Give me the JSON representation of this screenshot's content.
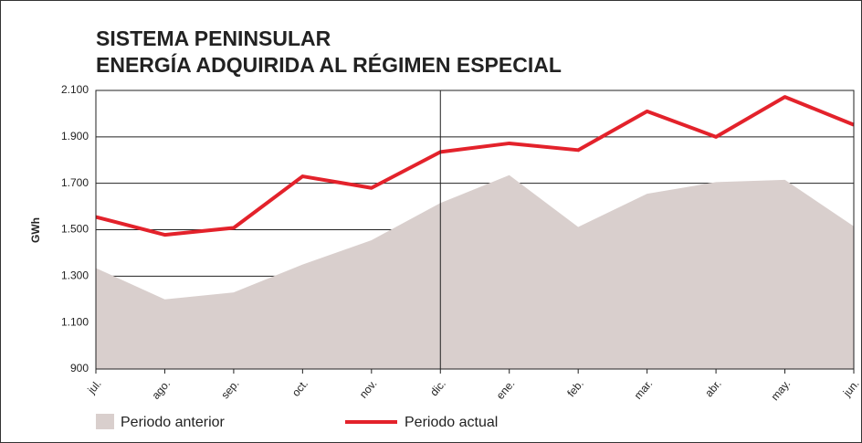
{
  "chart_data": {
    "type": "line",
    "title": [
      "SISTEMA PENINSULAR",
      "ENERGÍA ADQUIRIDA AL RÉGIMEN ESPECIAL"
    ],
    "y_label": "GWh",
    "categories": [
      "jul.",
      "ago.",
      "sep.",
      "oct.",
      "nov.",
      "dic.",
      "ene.",
      "feb.",
      "mar.",
      "abr.",
      "may.",
      "jun."
    ],
    "series": [
      {
        "name": "Periodo anterior",
        "color": "#d9cfcd",
        "style": "area",
        "values": [
          1335,
          1200,
          1230,
          1350,
          1455,
          1615,
          1735,
          1512,
          1655,
          1705,
          1715,
          1515
        ]
      },
      {
        "name": "Periodo actual",
        "color": "#e3222b",
        "style": "line",
        "values": [
          1555,
          1478,
          1508,
          1730,
          1680,
          1835,
          1872,
          1843,
          2010,
          1900,
          2072,
          1952
        ]
      }
    ],
    "ylim": [
      900,
      2100
    ],
    "yticks": [
      900,
      {
        "value": 1100,
        "label": "1.100"
      },
      {
        "value": 1300,
        "label": "1.300"
      },
      {
        "value": 1500,
        "label": "1.500"
      },
      {
        "value": 1700,
        "label": "1.700"
      },
      {
        "value": 1900,
        "label": "1.900"
      },
      {
        "value": 2100,
        "label": "2.100"
      }
    ],
    "grid": true
  }
}
